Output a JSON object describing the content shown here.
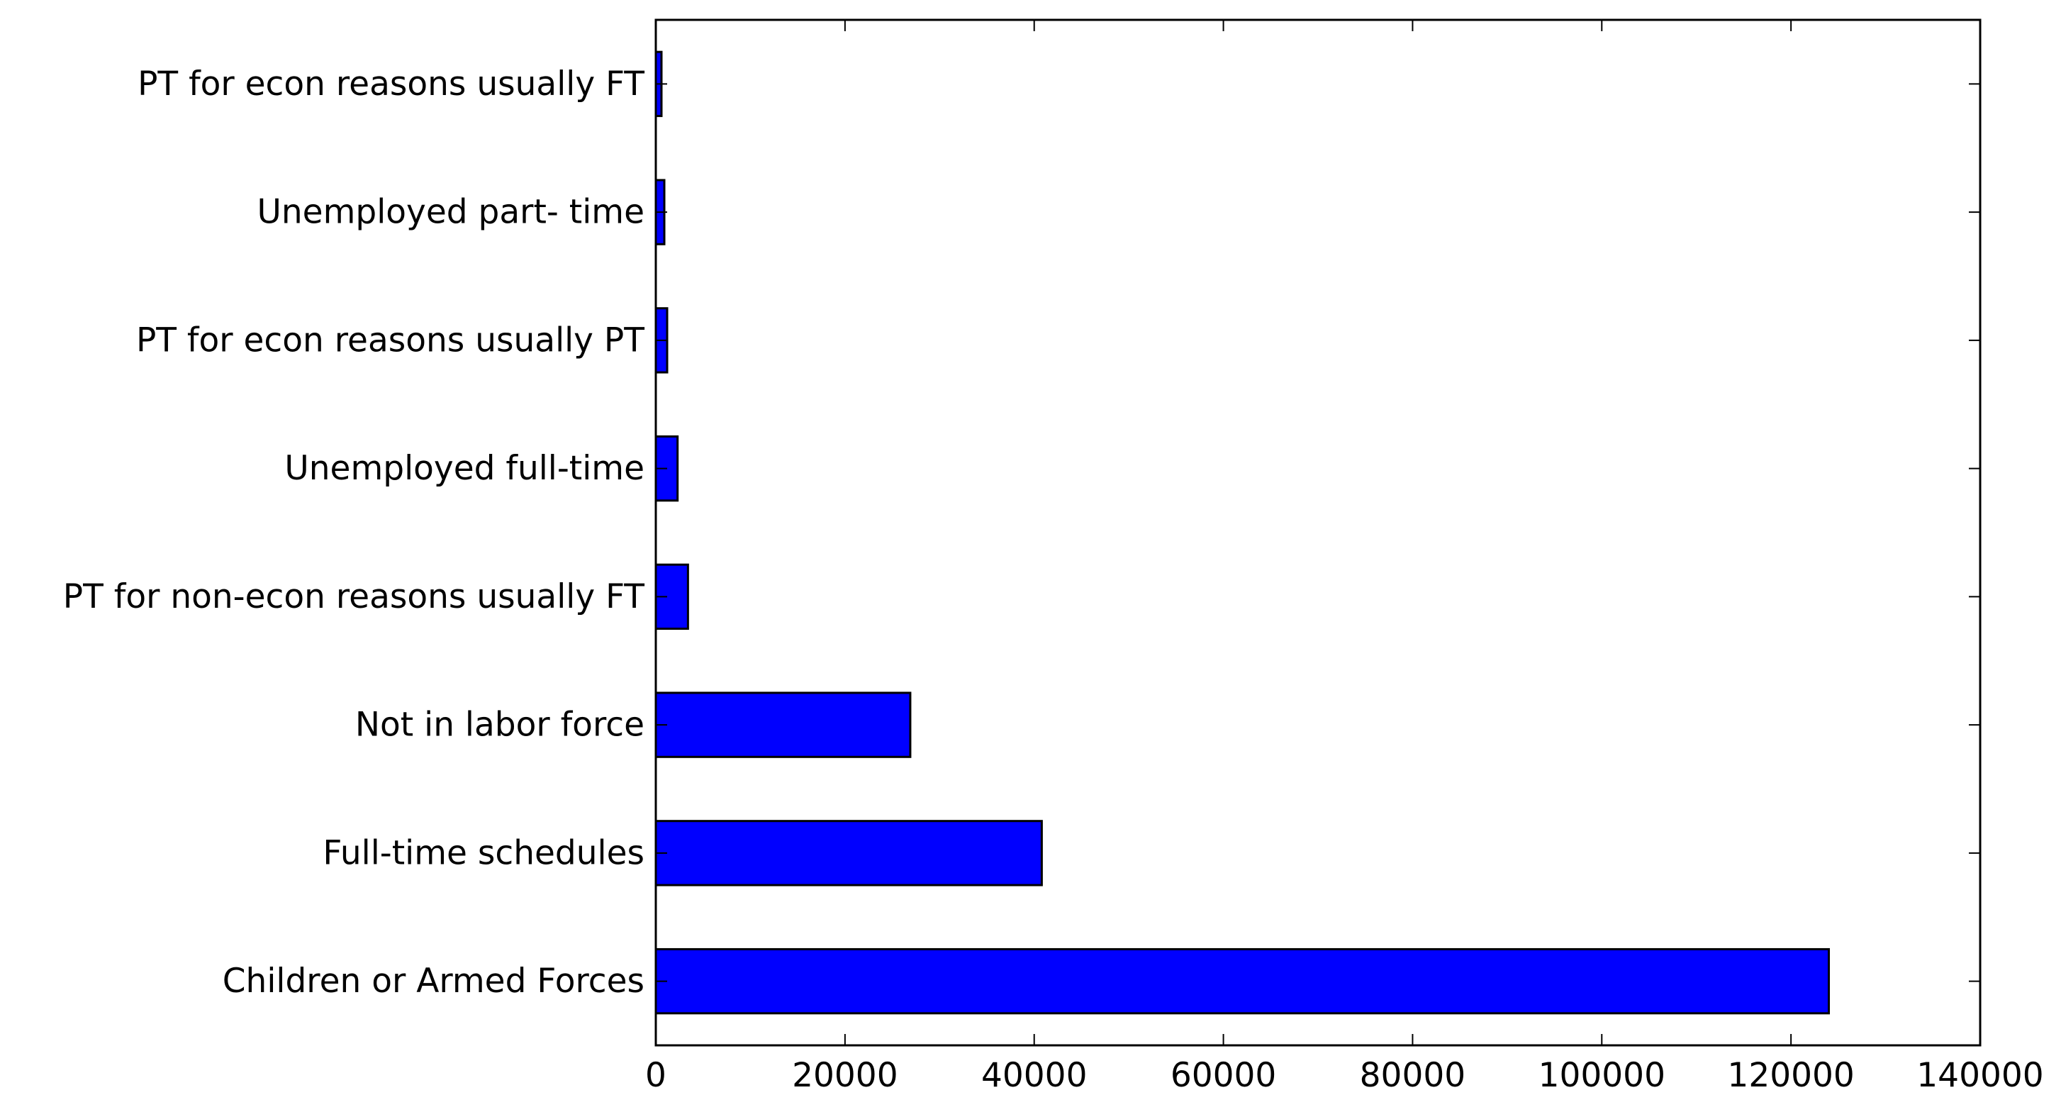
{
  "chart_data": {
    "type": "bar",
    "orientation": "horizontal",
    "title": "",
    "xlabel": "",
    "ylabel": "",
    "categories": [
      "Children or Armed Forces",
      "Full-time schedules",
      "Not in labor force",
      "PT for non-econ reasons usually FT",
      "Unemployed full-time",
      "PT for econ reasons usually PT",
      "Unemployed part- time",
      "PT for econ reasons usually FT"
    ],
    "values": [
      124000,
      40800,
      26900,
      3400,
      2300,
      1200,
      900,
      600
    ],
    "xlim": [
      0,
      140000
    ],
    "xticks": [
      0,
      20000,
      40000,
      60000,
      80000,
      100000,
      120000,
      140000
    ],
    "xtick_labels": [
      "0",
      "20000",
      "40000",
      "60000",
      "80000",
      "100000",
      "120000",
      "140000"
    ],
    "grid": false,
    "legend": "none",
    "bar_color": "#0000ff",
    "edge_color": "#000000"
  }
}
